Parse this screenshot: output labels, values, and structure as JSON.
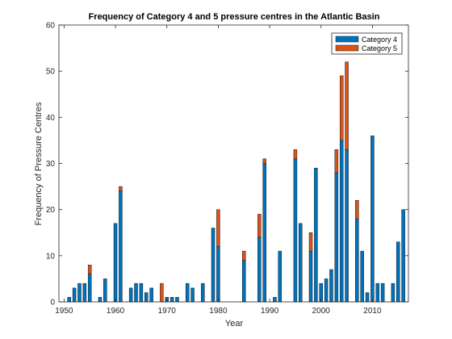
{
  "chart_data": {
    "type": "bar",
    "stacked": true,
    "title": "Frequency of Category 4 and 5 pressure centres in the Atlantic Basin",
    "xlabel": "Year",
    "ylabel": "Frequency of Pressure Centres",
    "xlim": [
      1949,
      2017
    ],
    "ylim": [
      0,
      60
    ],
    "xticks": [
      1950,
      1960,
      1970,
      1980,
      1990,
      2000,
      2010
    ],
    "yticks": [
      0,
      10,
      20,
      30,
      40,
      50,
      60
    ],
    "legend_position": "top-right",
    "grid": false,
    "series": [
      {
        "name": "Category 4",
        "color": "#0072BD",
        "points": [
          [
            1951,
            1
          ],
          [
            1952,
            3
          ],
          [
            1953,
            4
          ],
          [
            1954,
            4
          ],
          [
            1955,
            6
          ],
          [
            1957,
            1
          ],
          [
            1958,
            5
          ],
          [
            1960,
            17
          ],
          [
            1961,
            24
          ],
          [
            1963,
            3
          ],
          [
            1964,
            4
          ],
          [
            1965,
            4
          ],
          [
            1966,
            2
          ],
          [
            1967,
            3
          ],
          [
            1970,
            1
          ],
          [
            1971,
            1
          ],
          [
            1972,
            1
          ],
          [
            1974,
            4
          ],
          [
            1975,
            3
          ],
          [
            1977,
            4
          ],
          [
            1979,
            16
          ],
          [
            1980,
            12
          ],
          [
            1985,
            9
          ],
          [
            1988,
            14
          ],
          [
            1989,
            30
          ],
          [
            1991,
            1
          ],
          [
            1992,
            11
          ],
          [
            1995,
            31
          ],
          [
            1996,
            17
          ],
          [
            1998,
            11
          ],
          [
            1999,
            29
          ],
          [
            2000,
            4
          ],
          [
            2001,
            5
          ],
          [
            2002,
            7
          ],
          [
            2003,
            28
          ],
          [
            2004,
            35
          ],
          [
            2005,
            33
          ],
          [
            2007,
            18
          ],
          [
            2008,
            11
          ],
          [
            2009,
            2
          ],
          [
            2010,
            36
          ],
          [
            2011,
            4
          ],
          [
            2012,
            4
          ],
          [
            2014,
            4
          ],
          [
            2015,
            13
          ],
          [
            2016,
            20
          ]
        ]
      },
      {
        "name": "Category 5",
        "color": "#D95319",
        "points": [
          [
            1955,
            2
          ],
          [
            1961,
            1
          ],
          [
            1969,
            4
          ],
          [
            1980,
            8
          ],
          [
            1985,
            2
          ],
          [
            1988,
            5
          ],
          [
            1989,
            1
          ],
          [
            1995,
            2
          ],
          [
            1998,
            4
          ],
          [
            2003,
            5
          ],
          [
            2004,
            14
          ],
          [
            2005,
            19
          ],
          [
            2007,
            4
          ]
        ]
      }
    ]
  }
}
